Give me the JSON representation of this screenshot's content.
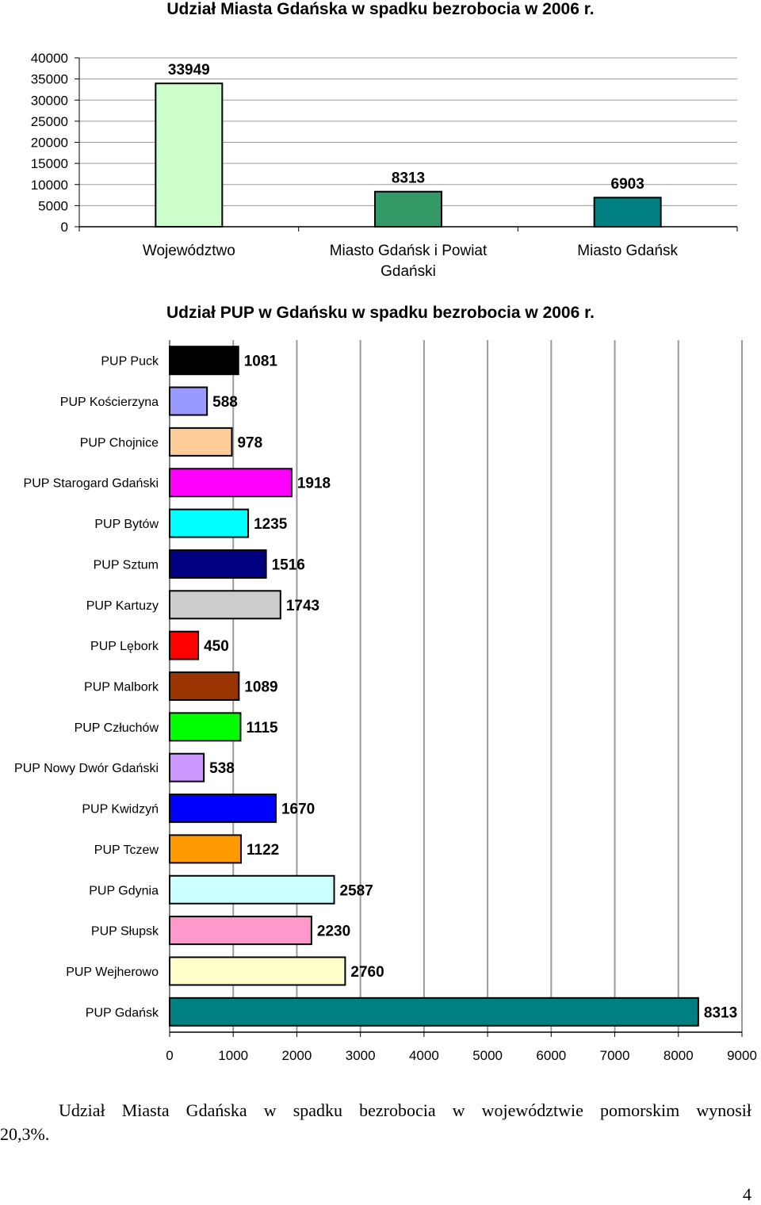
{
  "chart_data": [
    {
      "type": "bar",
      "title": "Udział Miasta Gdańska w spadku bezrobocia w 2006 r.",
      "categories": [
        "Województwo",
        "Miasto Gdańsk i Powiat Gdański",
        "Miasto Gdańsk"
      ],
      "values": [
        33949,
        8313,
        6903
      ],
      "colors": [
        "#ccffcc",
        "#339966",
        "#008080"
      ],
      "ylim": [
        0,
        40000
      ],
      "yticks": [
        0,
        5000,
        10000,
        15000,
        20000,
        25000,
        30000,
        35000,
        40000
      ],
      "grid": true,
      "data_labels": true
    },
    {
      "type": "bar",
      "orientation": "horizontal",
      "title": "Udział PUP w Gdańsku w spadku bezrobocia w 2006 r.",
      "categories": [
        "PUP Puck",
        "PUP Kościerzyna",
        "PUP Chojnice",
        "PUP Starogard Gdański",
        "PUP Bytów",
        "PUP Sztum",
        "PUP Kartuzy",
        "PUP Lębork",
        "PUP Malbork",
        "PUP Człuchów",
        "PUP Nowy Dwór Gdański",
        "PUP Kwidzyń",
        "PUP Tczew",
        "PUP Gdynia",
        "PUP Słupsk",
        "PUP Wejherowo",
        "PUP Gdańsk"
      ],
      "values": [
        1081,
        588,
        978,
        1918,
        1235,
        1516,
        1743,
        450,
        1089,
        1115,
        538,
        1670,
        1122,
        2587,
        2230,
        2760,
        8313
      ],
      "colors": [
        "#000000",
        "#9999ff",
        "#ffcc99",
        "#ff00ff",
        "#00ffff",
        "#000080",
        "#cccccc",
        "#ff0000",
        "#993300",
        "#00ff00",
        "#cc99ff",
        "#0000ff",
        "#ff9900",
        "#ccffff",
        "#ff99cc",
        "#ffffcc",
        "#008080"
      ],
      "xlim": [
        0,
        9000
      ],
      "xticks": [
        0,
        1000,
        2000,
        3000,
        4000,
        5000,
        6000,
        7000,
        8000,
        9000
      ],
      "grid": true,
      "data_labels": true
    }
  ],
  "footer": {
    "line1": "Udział Miasta Gdańska  w spadku bezrobocia w województwie pomorskim wynosił",
    "line2": "20,3%."
  },
  "page_number": "4"
}
